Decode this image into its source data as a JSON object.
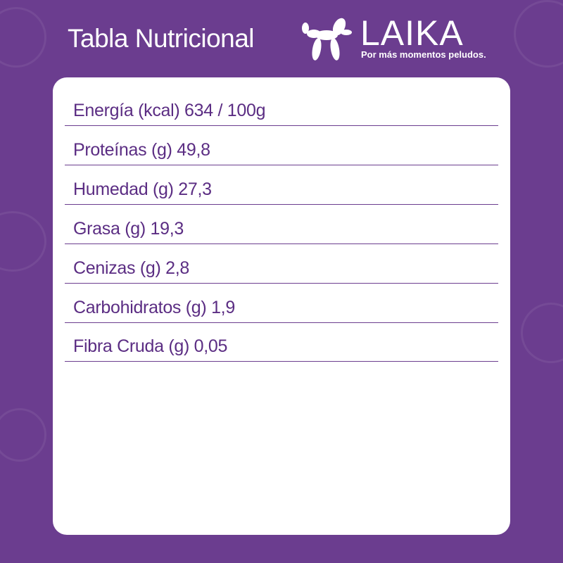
{
  "header": {
    "title": "Tabla Nutricional"
  },
  "logo": {
    "brand": "LAIKA",
    "tagline": "Por más momentos peludos.",
    "icon": "balloon-dog-icon"
  },
  "colors": {
    "background": "#6b3d8f",
    "text": "#5b2d83",
    "card": "#ffffff"
  },
  "nutrition": [
    {
      "label": "Energía (kcal) 634 / 100g"
    },
    {
      "label": "Proteínas (g) 49,8"
    },
    {
      "label": "Humedad (g) 27,3"
    },
    {
      "label": "Grasa (g) 19,3"
    },
    {
      "label": "Cenizas (g) 2,8"
    },
    {
      "label": "Carbohidratos (g) 1,9"
    },
    {
      "label": "Fibra Cruda (g) 0,05"
    }
  ]
}
